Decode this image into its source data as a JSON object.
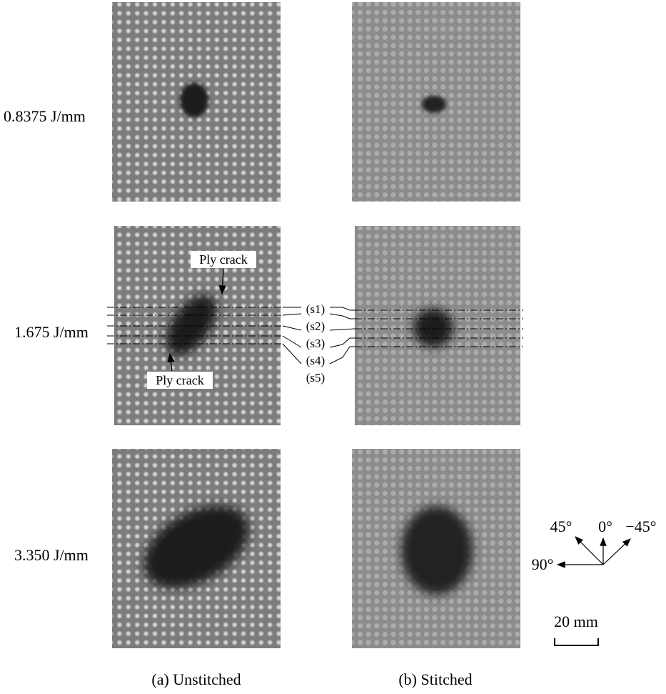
{
  "rows": [
    {
      "label": "0.8375 J/mm"
    },
    {
      "label": "1.675 J/mm"
    },
    {
      "label": "3.350 J/mm"
    }
  ],
  "columns": [
    {
      "caption": "(a) Unstitched"
    },
    {
      "caption": "(b) Stitched"
    }
  ],
  "annotations": {
    "ply_crack_top": "Ply crack",
    "ply_crack_bottom": "Ply crack",
    "sections": [
      "(s1)",
      "(s2)",
      "(s3)",
      "(s4)",
      "(s5)"
    ]
  },
  "orientation": {
    "zero": "0°",
    "plus45": "45°",
    "minus45": "−45°",
    "ninety": "90°"
  },
  "scale_bar": "20 mm"
}
